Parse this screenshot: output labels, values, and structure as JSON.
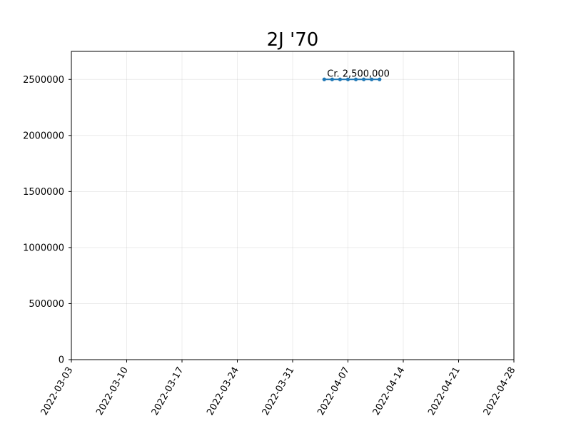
{
  "chart_data": {
    "type": "line",
    "title": "2J '70",
    "xlabel": "",
    "ylabel": "",
    "x_type": "date",
    "xlim": [
      "2022-03-03",
      "2022-04-28"
    ],
    "ylim": [
      0,
      2750000
    ],
    "x_ticks": [
      "2022-03-03",
      "2022-03-10",
      "2022-03-17",
      "2022-03-24",
      "2022-03-31",
      "2022-04-07",
      "2022-04-14",
      "2022-04-21",
      "2022-04-28"
    ],
    "y_ticks": [
      0,
      500000,
      1000000,
      1500000,
      2000000,
      2500000
    ],
    "y_tick_labels": [
      "0",
      "500000",
      "1000000",
      "1500000",
      "2000000",
      "2500000"
    ],
    "grid": true,
    "series": [
      {
        "x": [
          "2022-04-04",
          "2022-04-05",
          "2022-04-06",
          "2022-04-07",
          "2022-04-08",
          "2022-04-09",
          "2022-04-10",
          "2022-04-11"
        ],
        "values": [
          2500000,
          2500000,
          2500000,
          2500000,
          2500000,
          2500000,
          2500000,
          2500000
        ],
        "color": "#1f77b4",
        "marker": "circle"
      }
    ],
    "annotations": [
      {
        "text": "Cr. 2,500,000",
        "x": "2022-04-04",
        "y": 2500000
      }
    ]
  }
}
